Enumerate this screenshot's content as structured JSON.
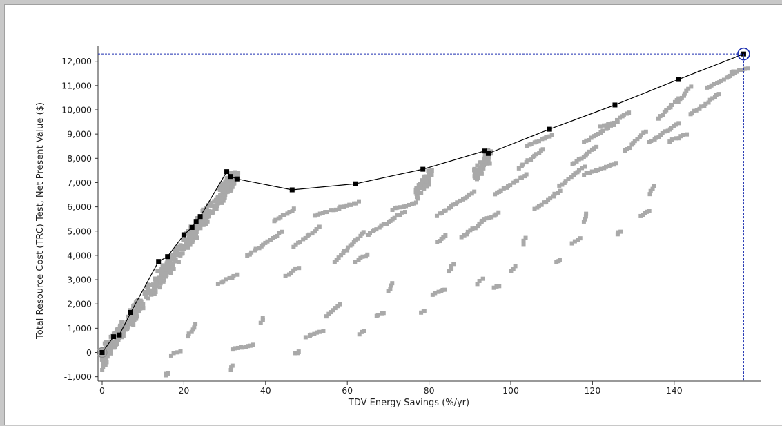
{
  "chart_data": {
    "type": "scatter",
    "xlabel": "TDV Energy Savings (%/yr)",
    "ylabel": "Total Resource Cost (TRC) Test, Net Present Value ($)",
    "xlim": [
      -1,
      160
    ],
    "ylim": [
      -1000,
      12700
    ],
    "x_ticks": [
      0,
      20,
      40,
      60,
      80,
      100,
      120,
      140
    ],
    "x_tick_labels": [
      "0",
      "20",
      "40",
      "60",
      "80",
      "100",
      "120",
      "140"
    ],
    "y_ticks": [
      -1000,
      0,
      1000,
      2000,
      3000,
      4000,
      5000,
      6000,
      7000,
      8000,
      9000,
      10000,
      11000,
      12000
    ],
    "y_tick_labels": [
      "-1,000",
      "0",
      "1,000",
      "2,000",
      "3,000",
      "4,000",
      "5,000",
      "6,000",
      "7,000",
      "8,000",
      "9,000",
      "10,000",
      "11,000",
      "12,000"
    ],
    "grid": false,
    "colors": {
      "cloud": "#a9a9a9",
      "frontier": "#000000",
      "crosshair": "#1c2fb0",
      "axis": "#333333"
    },
    "selected_point": {
      "x": 157,
      "y": 12300
    },
    "baseline_point": {
      "x": 0,
      "y": 0
    },
    "frontier": [
      [
        0,
        0
      ],
      [
        2.8,
        650
      ],
      [
        4.2,
        720
      ],
      [
        7,
        1650
      ],
      [
        13.8,
        3750
      ],
      [
        16,
        3950
      ],
      [
        20,
        4850
      ],
      [
        22,
        5150
      ],
      [
        23,
        5400
      ],
      [
        24,
        5600
      ],
      [
        30.5,
        7450
      ],
      [
        31.5,
        7250
      ],
      [
        33,
        7150
      ],
      [
        46.5,
        6700
      ],
      [
        62,
        6950
      ],
      [
        78.5,
        7550
      ],
      [
        93.5,
        8300
      ],
      [
        94.5,
        8200
      ],
      [
        109.5,
        9200
      ],
      [
        125.5,
        10200
      ],
      [
        141,
        11250
      ],
      [
        157,
        12300
      ]
    ],
    "dense_cluster": [
      {
        "x_from": 0,
        "x_to": 32,
        "y_from": -200,
        "y_to": 7200,
        "spread": 600,
        "count": 520
      },
      {
        "x_from": 77,
        "x_to": 81,
        "y_from": 6500,
        "y_to": 7500,
        "spread": 500,
        "count": 60
      },
      {
        "x_from": 91,
        "x_to": 95,
        "y_from": 7200,
        "y_to": 8200,
        "spread": 500,
        "count": 60
      },
      {
        "x_from": 29,
        "x_to": 33,
        "y_from": 6300,
        "y_to": 7400,
        "spread": 500,
        "count": 40
      }
    ],
    "streaks": [
      [
        35.5,
        4000,
        44,
        4950
      ],
      [
        42,
        5400,
        47,
        5900
      ],
      [
        47,
        4350,
        53,
        5150
      ],
      [
        52,
        5650,
        63,
        6200
      ],
      [
        57,
        3750,
        64,
        4950
      ],
      [
        62,
        3750,
        65,
        4050
      ],
      [
        65,
        4850,
        74,
        5800
      ],
      [
        71,
        5900,
        77,
        6150
      ],
      [
        82,
        4550,
        84,
        4800
      ],
      [
        82,
        5650,
        91,
        6600
      ],
      [
        88,
        4750,
        93,
        5350
      ],
      [
        93,
        5400,
        97,
        5750
      ],
      [
        96,
        6500,
        104,
        7350
      ],
      [
        102,
        7600,
        108,
        8400
      ],
      [
        104,
        8500,
        110,
        8950
      ],
      [
        106,
        5900,
        112,
        6650
      ],
      [
        112,
        6850,
        118,
        7650
      ],
      [
        115,
        7750,
        121,
        8450
      ],
      [
        118,
        8650,
        125,
        9400
      ],
      [
        118,
        7350,
        126,
        7800
      ],
      [
        122,
        9300,
        126,
        9500
      ],
      [
        126,
        9600,
        129,
        9900
      ],
      [
        128,
        8300,
        133,
        9100
      ],
      [
        134,
        8650,
        141,
        9450
      ],
      [
        139,
        8700,
        143,
        9000
      ],
      [
        136,
        9650,
        141,
        10450
      ],
      [
        141,
        10300,
        144,
        10950
      ],
      [
        144,
        9800,
        151,
        10650
      ],
      [
        148,
        10900,
        155,
        11500
      ],
      [
        154,
        11550,
        158,
        11700
      ],
      [
        28.5,
        2850,
        33,
        3200
      ],
      [
        45,
        3150,
        48,
        3500
      ],
      [
        55,
        1500,
        58,
        2000
      ],
      [
        32,
        150,
        37,
        300
      ],
      [
        17,
        -100,
        19,
        50
      ],
      [
        21,
        650,
        23,
        1150
      ],
      [
        50,
        650,
        54,
        900
      ],
      [
        63,
        750,
        64,
        900
      ],
      [
        67,
        1500,
        69,
        1650
      ],
      [
        70,
        2550,
        71,
        2850
      ],
      [
        78,
        1650,
        79,
        1750
      ],
      [
        81,
        2400,
        84,
        2600
      ],
      [
        85,
        3350,
        86,
        3650
      ],
      [
        92,
        2850,
        93,
        3050
      ],
      [
        96,
        2650,
        97,
        2750
      ],
      [
        100,
        3350,
        101,
        3550
      ],
      [
        103,
        4450,
        103.5,
        4700
      ],
      [
        111,
        3700,
        112,
        3850
      ],
      [
        115,
        4500,
        117,
        4700
      ],
      [
        118,
        5400,
        118.5,
        5700
      ],
      [
        126,
        4850,
        127,
        5000
      ],
      [
        132,
        5600,
        134,
        5850
      ],
      [
        134,
        6550,
        135,
        6850
      ],
      [
        39,
        1200,
        39.5,
        1450
      ],
      [
        47.5,
        -50,
        48,
        50
      ],
      [
        31.5,
        -700,
        32,
        -550
      ],
      [
        15.5,
        -950,
        16,
        -850
      ],
      [
        0,
        -700,
        1,
        -400
      ]
    ]
  }
}
